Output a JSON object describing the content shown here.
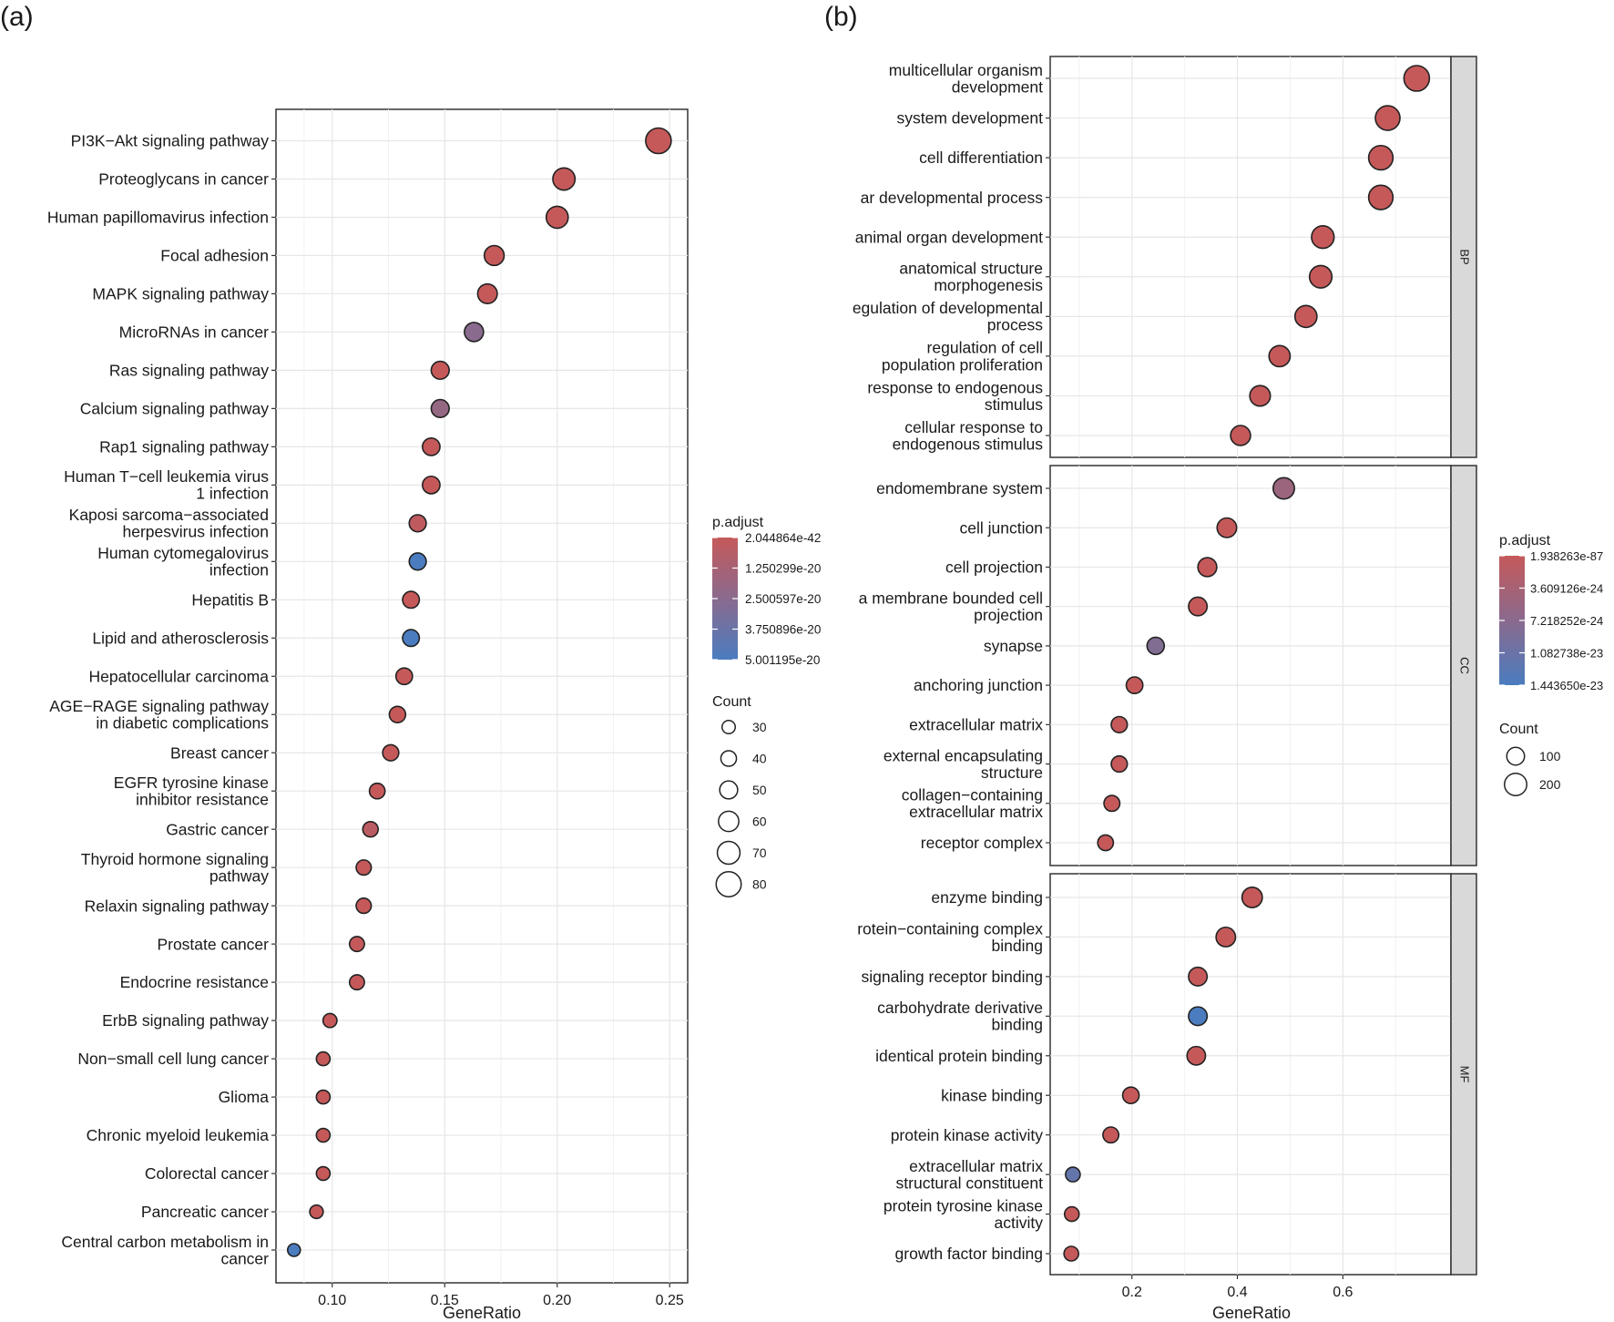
{
  "panels": {
    "a_label": "(a)",
    "b_label": "(b)"
  },
  "chart_data": [
    {
      "type": "scatter",
      "panel": "(a)",
      "xlabel": "GeneRatio",
      "ylabel": "",
      "xlim": [
        0.075,
        0.258
      ],
      "xticks": [
        0.1,
        0.15,
        0.2,
        0.25
      ],
      "xtick_labels": [
        "0.10",
        "0.15",
        "0.20",
        "0.25"
      ],
      "grid": true,
      "legend_position": "right",
      "color_legend": {
        "title": "p.adjust",
        "labels": [
          "2.044864e-42",
          "1.250299e-20",
          "2.500597e-20",
          "3.750896e-20",
          "5.001195e-20"
        ],
        "low_color": "#C5595A",
        "high_color": "#4A7CBF"
      },
      "size_legend": {
        "title": "Count",
        "values": [
          30,
          40,
          50,
          60,
          70,
          80
        ]
      },
      "categories": [
        [
          "PI3K−Akt signaling pathway"
        ],
        [
          "Proteoglycans in cancer"
        ],
        [
          "Human papillomavirus infection"
        ],
        [
          "Focal adhesion"
        ],
        [
          "MAPK signaling pathway"
        ],
        [
          "MicroRNAs in cancer"
        ],
        [
          "Ras signaling pathway"
        ],
        [
          "Calcium signaling pathway"
        ],
        [
          "Rap1 signaling pathway"
        ],
        [
          "Human T−cell leukemia virus",
          "1 infection"
        ],
        [
          "Kaposi sarcoma−associated",
          "herpesvirus infection"
        ],
        [
          "Human cytomegalovirus",
          "infection"
        ],
        [
          "Hepatitis B"
        ],
        [
          "Lipid and atherosclerosis"
        ],
        [
          "Hepatocellular carcinoma"
        ],
        [
          "AGE−RAGE signaling pathway",
          "in diabetic complications"
        ],
        [
          "Breast cancer"
        ],
        [
          "EGFR tyrosine kinase",
          "inhibitor resistance"
        ],
        [
          "Gastric cancer"
        ],
        [
          "Thyroid hormone signaling",
          "pathway"
        ],
        [
          "Relaxin signaling pathway"
        ],
        [
          "Prostate cancer"
        ],
        [
          "Endocrine resistance"
        ],
        [
          "ErbB signaling pathway"
        ],
        [
          "Non−small cell lung cancer"
        ],
        [
          "Glioma"
        ],
        [
          "Chronic myeloid leukemia"
        ],
        [
          "Colorectal cancer"
        ],
        [
          "Pancreatic cancer"
        ],
        [
          "Central carbon metabolism in",
          "cancer"
        ]
      ],
      "gene_ratio": [
        0.245,
        0.203,
        0.2,
        0.172,
        0.169,
        0.163,
        0.148,
        0.148,
        0.144,
        0.144,
        0.138,
        0.138,
        0.135,
        0.135,
        0.132,
        0.129,
        0.126,
        0.12,
        0.117,
        0.114,
        0.114,
        0.111,
        0.111,
        0.099,
        0.096,
        0.096,
        0.096,
        0.096,
        0.093,
        0.083
      ],
      "count": [
        82,
        68,
        67,
        58,
        57,
        55,
        50,
        50,
        48,
        48,
        46,
        46,
        45,
        45,
        44,
        43,
        42,
        40,
        39,
        38,
        38,
        37,
        37,
        33,
        32,
        32,
        32,
        32,
        31,
        28
      ],
      "p_adjust_fraction": [
        0.0,
        0.0,
        0.0,
        0.0,
        0.0,
        0.5,
        0.0,
        0.4,
        0.0,
        0.0,
        0.05,
        1.0,
        0.0,
        1.0,
        0.0,
        0.0,
        0.0,
        0.0,
        0.08,
        0.0,
        0.0,
        0.0,
        0.0,
        0.0,
        0.0,
        0.0,
        0.0,
        0.0,
        0.0,
        1.0
      ]
    },
    {
      "type": "scatter",
      "panel": "(b)",
      "xlabel": "GeneRatio",
      "ylabel": "",
      "xlim": [
        0.045,
        0.805
      ],
      "xticks": [
        0.2,
        0.4,
        0.6
      ],
      "xtick_labels": [
        "0.2",
        "0.4",
        "0.6"
      ],
      "grid": true,
      "legend_position": "right",
      "color_legend": {
        "title": "p.adjust",
        "labels": [
          "1.938263e-87",
          "3.609126e-24",
          "7.218252e-24",
          "1.082738e-23",
          "1.443650e-23"
        ],
        "low_color": "#C5595A",
        "high_color": "#4A7CBF"
      },
      "size_legend": {
        "title": "Count",
        "values": [
          100,
          200
        ]
      },
      "facets": [
        {
          "strip": "BP",
          "categories": [
            [
              "multicellular organism",
              "development"
            ],
            [
              "system development"
            ],
            [
              "cell differentiation"
            ],
            [
              "ar developmental process"
            ],
            [
              "animal organ development"
            ],
            [
              "anatomical structure",
              "morphogenesis"
            ],
            [
              "egulation of developmental",
              "process"
            ],
            [
              "regulation of cell",
              "population proliferation"
            ],
            [
              "response to endogenous",
              "stimulus"
            ],
            [
              "cellular response to",
              "endogenous stimulus"
            ]
          ],
          "gene_ratio": [
            0.74,
            0.685,
            0.672,
            0.672,
            0.562,
            0.558,
            0.53,
            0.48,
            0.443,
            0.406
          ],
          "count": [
            270,
            250,
            245,
            245,
            205,
            203,
            193,
            175,
            162,
            148
          ],
          "p_adjust_fraction": [
            0,
            0,
            0,
            0,
            0,
            0,
            0,
            0,
            0,
            0
          ]
        },
        {
          "strip": "CC",
          "categories": [
            [
              "endomembrane system"
            ],
            [
              "cell junction"
            ],
            [
              "cell projection"
            ],
            [
              "a membrane bounded cell",
              "projection"
            ],
            [
              "synapse"
            ],
            [
              "anchoring junction"
            ],
            [
              "extracellular matrix"
            ],
            [
              "external encapsulating",
              "structure"
            ],
            [
              "collagen−containing",
              "extracellular matrix"
            ],
            [
              "receptor complex"
            ]
          ],
          "gene_ratio": [
            0.488,
            0.38,
            0.343,
            0.325,
            0.245,
            0.205,
            0.176,
            0.176,
            0.162,
            0.15
          ],
          "count": [
            178,
            139,
            125,
            118,
            89,
            75,
            64,
            64,
            59,
            55
          ],
          "p_adjust_fraction": [
            0.35,
            0,
            0,
            0,
            0.55,
            0,
            0,
            0,
            0,
            0
          ]
        },
        {
          "strip": "MF",
          "categories": [
            [
              "enzyme binding"
            ],
            [
              "rotein−containing complex",
              "binding"
            ],
            [
              "signaling receptor binding"
            ],
            [
              "carbohydrate derivative",
              "binding"
            ],
            [
              "identical protein binding"
            ],
            [
              "kinase binding"
            ],
            [
              "protein kinase activity"
            ],
            [
              "extracellular matrix",
              "structural constituent"
            ],
            [
              "protein tyrosine kinase",
              "activity"
            ],
            [
              "growth factor binding"
            ]
          ],
          "gene_ratio": [
            0.428,
            0.378,
            0.325,
            0.325,
            0.322,
            0.198,
            0.16,
            0.088,
            0.086,
            0.085
          ],
          "count": [
            156,
            138,
            119,
            119,
            117,
            72,
            58,
            32,
            31,
            31
          ],
          "p_adjust_fraction": [
            0,
            0,
            0,
            1.0,
            0,
            0,
            0,
            0.8,
            0,
            0
          ]
        }
      ]
    }
  ]
}
